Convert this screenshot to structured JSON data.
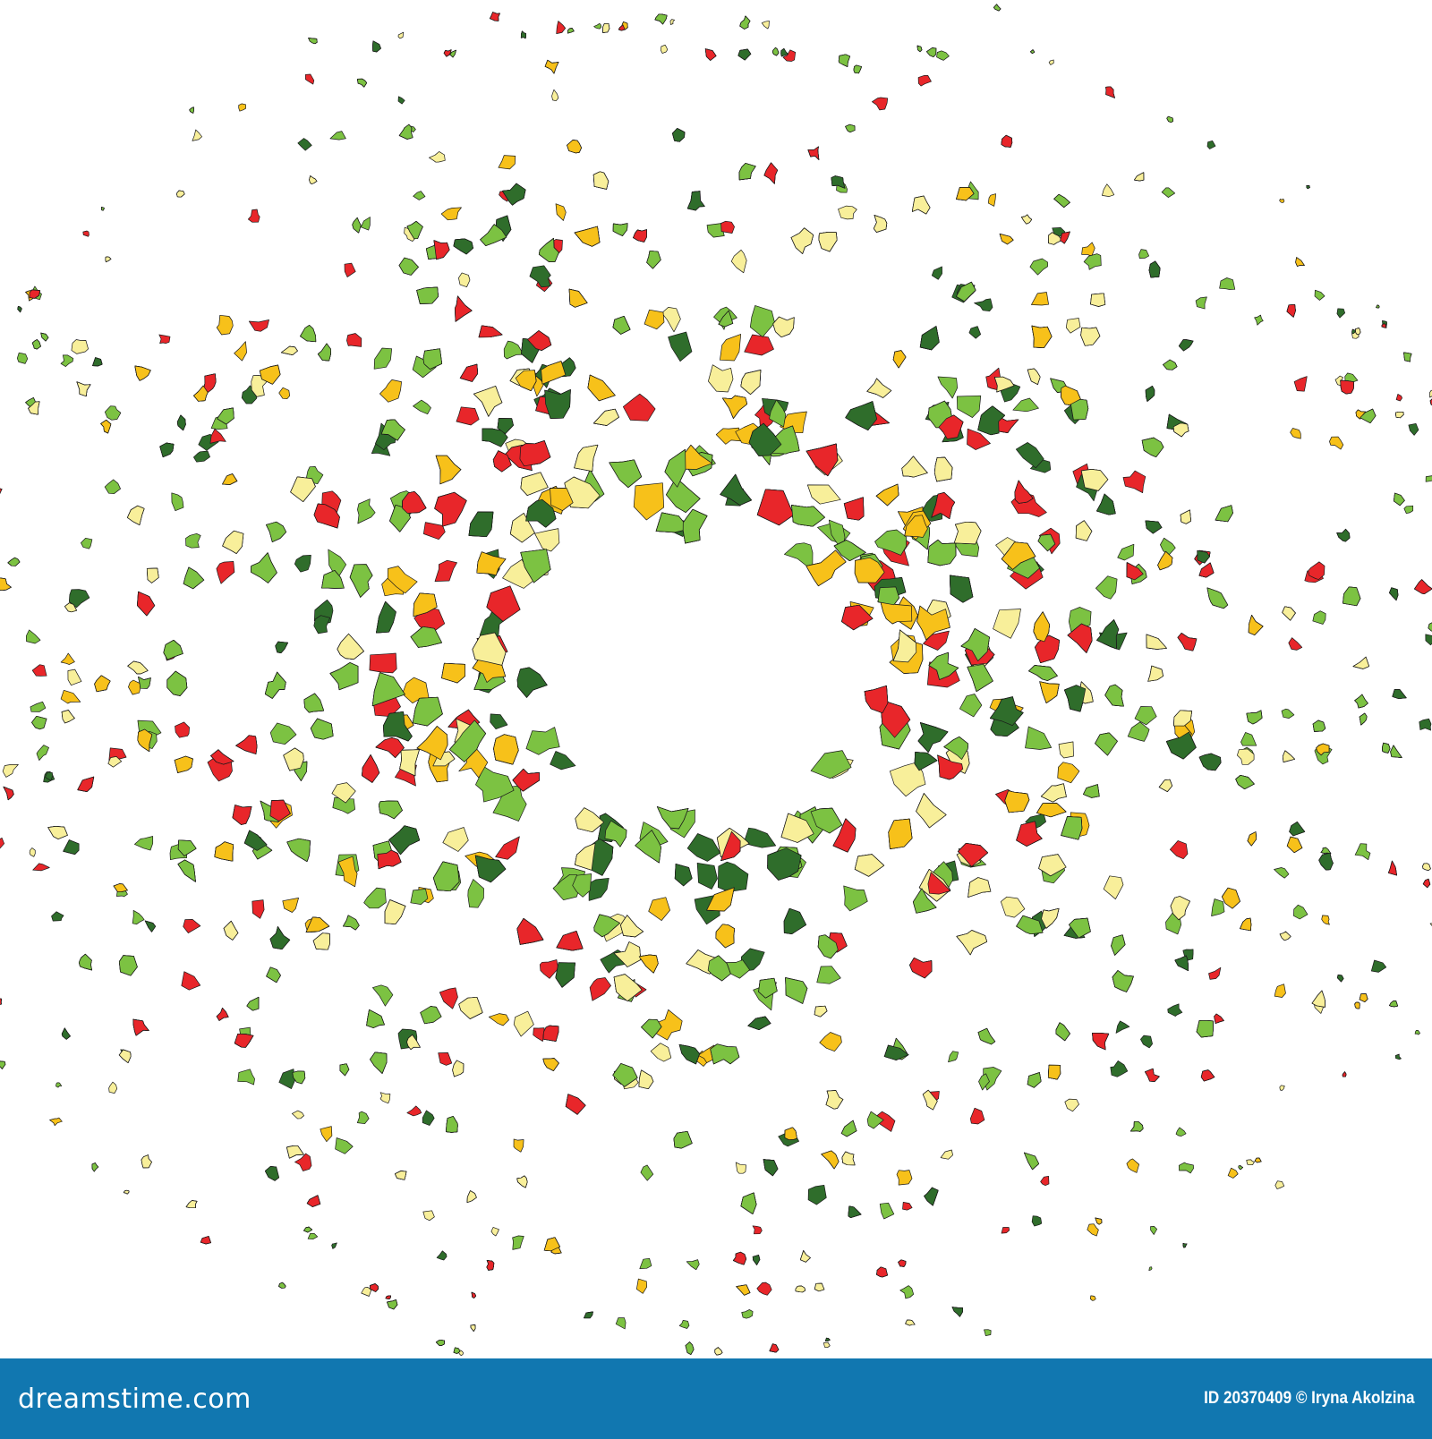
{
  "image": {
    "subject": "confetti ring",
    "colors": {
      "red": "#e8262a",
      "yellow": "#f7c11a",
      "pale_yellow": "#f8ef9a",
      "light_green": "#7cc242",
      "dark_green": "#2f6d2b",
      "outline": "#1a1a1a",
      "background": "#ffffff"
    }
  },
  "watermark_bar": {
    "color": "#1177b0",
    "logo_text": "dreamstime.com",
    "credit": "ID 20370409 © Iryna Akolzina"
  }
}
